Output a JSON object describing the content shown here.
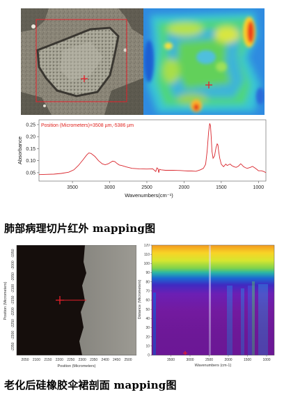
{
  "panel1": {
    "caption": "肺部病理切片红外 mapping图",
    "position_label": "Position (Micrometers)=3508 µm,-5386 µm",
    "crosshair_color": "#e8202a"
  },
  "chart_data": [
    {
      "type": "line",
      "xlabel": "Wavenumbers(cm⁻¹)",
      "ylabel": "Absorbance",
      "xlim": [
        3950,
        900
      ],
      "ylim": [
        0.015,
        0.27
      ],
      "x_ticks": [
        3500,
        3000,
        2500,
        2000,
        1500,
        1000
      ],
      "y_ticks": [
        0.05,
        0.1,
        0.15,
        0.2,
        0.25
      ],
      "y_tick_labels": [
        "0.05",
        "0.10",
        "0.15",
        "0.20",
        "0.25"
      ],
      "series": [
        {
          "color": "#d9232a",
          "x": [
            3950,
            3850,
            3750,
            3650,
            3550,
            3480,
            3420,
            3360,
            3310,
            3280,
            3250,
            3200,
            3150,
            3100,
            3060,
            3020,
            2960,
            2930,
            2900,
            2870,
            2840,
            2780,
            2700,
            2600,
            2500,
            2420,
            2380,
            2365,
            2350,
            2340,
            2330,
            2310,
            2250,
            2150,
            2050,
            2000,
            1950,
            1900,
            1840,
            1780,
            1740,
            1710,
            1690,
            1670,
            1655,
            1645,
            1635,
            1625,
            1610,
            1590,
            1570,
            1555,
            1545,
            1535,
            1520,
            1500,
            1470,
            1455,
            1440,
            1420,
            1400,
            1380,
            1360,
            1330,
            1300,
            1270,
            1240,
            1230,
            1200,
            1170,
            1150,
            1110,
            1080,
            1050,
            1020,
            1000,
            960,
            930,
            900
          ],
          "y": [
            0.042,
            0.043,
            0.044,
            0.047,
            0.052,
            0.062,
            0.08,
            0.103,
            0.123,
            0.132,
            0.13,
            0.118,
            0.1,
            0.087,
            0.083,
            0.087,
            0.098,
            0.096,
            0.088,
            0.082,
            0.08,
            0.074,
            0.068,
            0.066,
            0.065,
            0.066,
            0.055,
            0.07,
            0.066,
            0.05,
            0.064,
            0.062,
            0.06,
            0.06,
            0.059,
            0.058,
            0.057,
            0.057,
            0.056,
            0.062,
            0.068,
            0.085,
            0.14,
            0.22,
            0.255,
            0.245,
            0.2,
            0.14,
            0.11,
            0.12,
            0.155,
            0.17,
            0.165,
            0.14,
            0.11,
            0.085,
            0.075,
            0.08,
            0.086,
            0.08,
            0.083,
            0.086,
            0.08,
            0.075,
            0.072,
            0.077,
            0.087,
            0.085,
            0.075,
            0.07,
            0.068,
            0.072,
            0.076,
            0.07,
            0.063,
            0.058,
            0.058,
            0.055,
            0.05
          ]
        }
      ]
    },
    {
      "type": "heatmap",
      "xlabel": "Wavenumbers (cm-1)",
      "ylabel": "Distance (Micrometers)",
      "xlim": [
        4000,
        800
      ],
      "ylim": [
        0,
        120
      ],
      "x_ticks": [
        3500,
        3000,
        2500,
        2000,
        1500,
        1000
      ],
      "y_ticks": [
        0,
        10,
        20,
        30,
        40,
        50,
        60,
        70,
        80,
        90,
        100,
        110,
        120
      ]
    }
  ],
  "panel2": {
    "caption": "老化后硅橡胶伞裙剖面 mapping图",
    "left_xlabel": "Position (Micrometers)",
    "left_ylabel": "Position (Micrometers)",
    "left_x_ticks": [
      "2050",
      "2100",
      "2150",
      "2200",
      "2250",
      "2300",
      "2350",
      "2400",
      "2450",
      "2500"
    ],
    "left_y_ticks": [
      "-1950",
      "-2000",
      "-2050",
      "-2100",
      "-2150",
      "-2200",
      "-2250",
      "-2300",
      "-2350"
    ]
  }
}
